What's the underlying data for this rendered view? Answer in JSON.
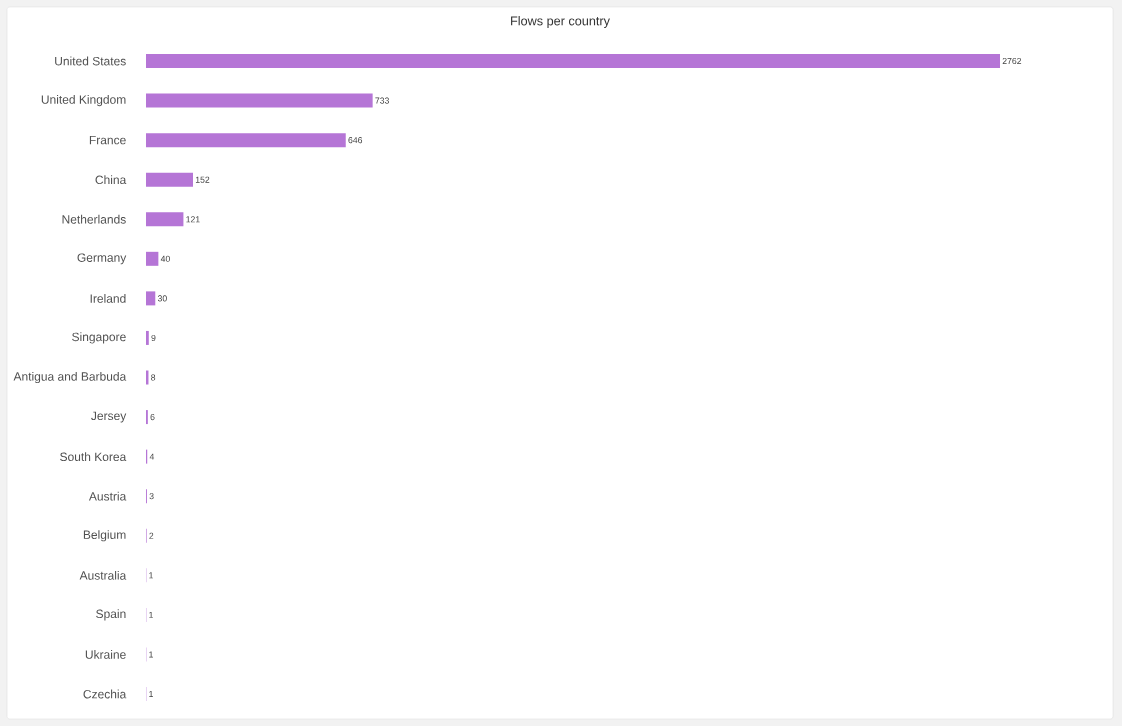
{
  "chart_data": {
    "type": "bar",
    "orientation": "horizontal",
    "title": "Flows per country",
    "categories": [
      "United States",
      "United Kingdom",
      "France",
      "China",
      "Netherlands",
      "Germany",
      "Ireland",
      "Singapore",
      "Antigua and Barbuda",
      "Jersey",
      "South Korea",
      "Austria",
      "Belgium",
      "Australia",
      "Spain",
      "Ukraine",
      "Czechia"
    ],
    "values": [
      2762,
      733,
      646,
      152,
      121,
      40,
      30,
      9,
      8,
      6,
      4,
      3,
      2,
      1,
      1,
      1,
      1
    ],
    "color": "#b575d6",
    "data_labels": true
  }
}
